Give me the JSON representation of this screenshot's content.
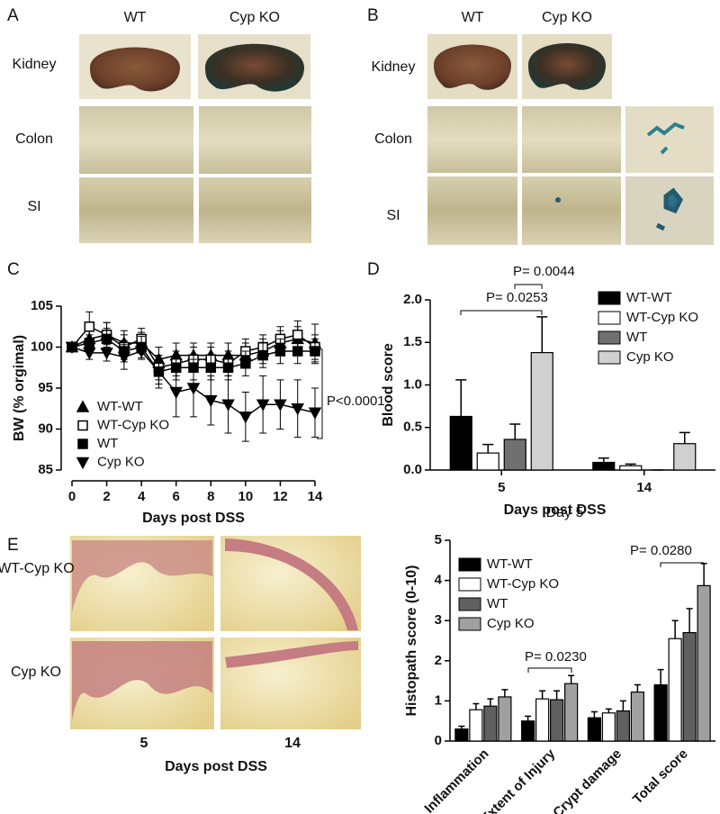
{
  "figure": {
    "panels": [
      {
        "letter": "A",
        "columns": [
          "WT",
          "Cyp KO"
        ],
        "rows": [
          "Kidney",
          "Colon",
          "SI"
        ]
      },
      {
        "letter": "B",
        "columns": [
          "WT",
          "Cyp KO"
        ],
        "rows": [
          "Kidney",
          "Colon",
          "SI"
        ]
      },
      {
        "letter": "E",
        "rows": [
          "WT-Cyp KO",
          "Cyp KO"
        ],
        "columns": [
          "5",
          "14"
        ],
        "xlabel": "Days post DSS"
      }
    ]
  },
  "chart_data": [
    {
      "type": "line",
      "panel": "C",
      "xlabel": "Days post DSS",
      "ylabel": "BW (% orgimal)",
      "x": [
        0,
        1,
        2,
        3,
        4,
        5,
        6,
        7,
        8,
        9,
        10,
        11,
        12,
        13,
        14
      ],
      "xlim": [
        0,
        14
      ],
      "xticks": [
        0,
        2,
        4,
        6,
        8,
        10,
        12,
        14
      ],
      "ylim": [
        85,
        105
      ],
      "yticks": [
        85,
        90,
        95,
        100,
        105
      ],
      "legend": "lower left",
      "annotations": [
        "P<0.0001"
      ],
      "series": [
        {
          "name": "WT-WT",
          "color": "#000000",
          "fill": "#000000",
          "marker": "triangle-up",
          "values": [
            100,
            101,
            101.5,
            100.5,
            100.5,
            98.5,
            99,
            99,
            99,
            99,
            99,
            99.5,
            100.5,
            101,
            100.5
          ],
          "errors": [
            0,
            1.5,
            1.5,
            1.5,
            1.3,
            1.5,
            1.5,
            1.5,
            1.5,
            1.5,
            1.5,
            1.5,
            1.5,
            1.5,
            2.3
          ]
        },
        {
          "name": "WT-Cyp KO",
          "color": "#000000",
          "fill": "#ffffff",
          "marker": "square",
          "values": [
            100,
            102.5,
            101.5,
            100,
            101,
            97.5,
            98,
            98.5,
            98.5,
            98,
            99.5,
            100,
            101,
            101.5,
            100
          ],
          "errors": [
            0,
            1.8,
            1.5,
            1.5,
            1.3,
            1.5,
            1.5,
            1.5,
            1.5,
            1.5,
            1.5,
            1.5,
            1.5,
            1.7,
            1.5
          ]
        },
        {
          "name": "WT",
          "color": "#000000",
          "fill": "#000000",
          "marker": "square",
          "values": [
            100,
            100.5,
            101,
            99.5,
            100,
            97,
            97.5,
            97.5,
            97.5,
            97.5,
            98,
            99,
            99.5,
            99.5,
            99.5
          ],
          "errors": [
            0,
            1,
            1.3,
            1.3,
            1.3,
            1.5,
            1.5,
            1.5,
            1.5,
            1.5,
            1.5,
            1.5,
            1.5,
            1.5,
            1.5
          ]
        },
        {
          "name": "Cyp KO",
          "color": "#000000",
          "fill": "#000000",
          "marker": "triangle-down",
          "values": [
            100,
            99.3,
            99.3,
            98.8,
            99.5,
            97,
            94.5,
            95,
            93.5,
            93,
            91.5,
            93,
            93,
            92.5,
            92
          ],
          "errors": [
            0,
            0.8,
            1,
            1.5,
            1,
            2,
            3,
            3.5,
            3,
            3.5,
            3,
            3.5,
            3,
            3.5,
            3
          ]
        }
      ]
    },
    {
      "type": "bar",
      "panel": "D",
      "xlabel": "Days post DSS",
      "ylabel": "Blood score",
      "categories": [
        "5",
        "14"
      ],
      "ylim": [
        0,
        2
      ],
      "yticks": [
        {
          "value": 0,
          "label": "0.0"
        },
        0.5,
        {
          "value": 1,
          "label": "1.0"
        },
        1.5,
        {
          "value": 2,
          "label": "2.0"
        }
      ],
      "legend": "upper right",
      "annotations": [
        "P= 0.0044",
        "P= 0.0253"
      ],
      "series": [
        {
          "name": "WT-WT",
          "color": "#000000",
          "values": [
            0.63,
            0.09
          ],
          "errors": [
            0.43,
            0.05
          ]
        },
        {
          "name": "WT-Cyp KO",
          "color": "#ffffff",
          "values": [
            0.2,
            0.05
          ],
          "errors": [
            0.1,
            0.02
          ]
        },
        {
          "name": "WT",
          "color": "#707070",
          "values": [
            0.36,
            0
          ],
          "errors": [
            0.18,
            0
          ]
        },
        {
          "name": "Cyp KO",
          "color": "#d0d0d0",
          "values": [
            1.38,
            0.31
          ],
          "errors": [
            0.42,
            0.13
          ]
        }
      ]
    },
    {
      "type": "bar",
      "title": "Day 5",
      "ylabel": "Histopath score (0-10)",
      "categories": [
        "Inflammation",
        "Extent of Injury",
        "Crypt damage",
        "Total score"
      ],
      "rotate_labels": true,
      "ylim": [
        0,
        5
      ],
      "yticks": [
        0,
        1,
        2,
        3,
        4,
        5
      ],
      "legend": "upper left",
      "annotations": [
        "P= 0.0230",
        "P= 0.0280"
      ],
      "series": [
        {
          "name": "WT-WT",
          "color": "#000000",
          "values": [
            0.3,
            0.5,
            0.58,
            1.4
          ],
          "errors": [
            0.07,
            0.12,
            0.15,
            0.38
          ]
        },
        {
          "name": "WT-Cyp KO",
          "color": "#ffffff",
          "values": [
            0.78,
            1.05,
            0.7,
            2.55
          ],
          "errors": [
            0.15,
            0.2,
            0.1,
            0.45
          ]
        },
        {
          "name": "WT",
          "color": "#606060",
          "values": [
            0.87,
            1.03,
            0.75,
            2.7
          ],
          "errors": [
            0.18,
            0.22,
            0.25,
            0.6
          ]
        },
        {
          "name": "Cyp KO",
          "color": "#a0a0a0",
          "values": [
            1.1,
            1.43,
            1.22,
            3.87
          ],
          "errors": [
            0.18,
            0.2,
            0.18,
            0.55
          ]
        }
      ]
    }
  ]
}
